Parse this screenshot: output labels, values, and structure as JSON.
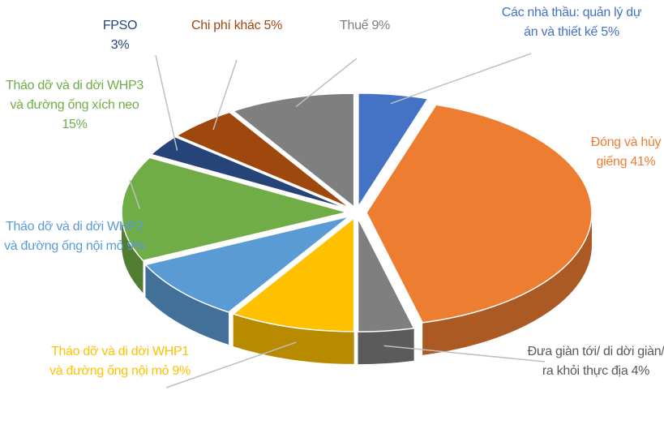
{
  "chart_data": {
    "type": "pie",
    "categories": [
      "Các nhà thầu: quản lý dự án và thiết kế",
      "Đóng và hủy giếng",
      "Đưa giàn tới/ di dời giàn/ ra khỏi thực địa",
      "Tháo dỡ và di dời WHP1 và đường ống nội mỏ",
      "Tháo dỡ và di dời WHP2 và đường ống nội mỏ",
      "Tháo dỡ và di dời WHP3 và đường ống xích neo",
      "FPSO",
      "Chi phí khác",
      "Thuế"
    ],
    "values": [
      5,
      41,
      4,
      9,
      9,
      15,
      3,
      5,
      9
    ],
    "value_labels": [
      "5%",
      "41%",
      "4%",
      "9%",
      "9%",
      "15%",
      "3%",
      "5%",
      "9%"
    ],
    "colors": [
      "#4472c4",
      "#ed7d31",
      "#7f7f7f",
      "#ffc000",
      "#5b9bd5",
      "#70ad47",
      "#264478",
      "#9e480e",
      "#7f7f7f"
    ]
  }
}
